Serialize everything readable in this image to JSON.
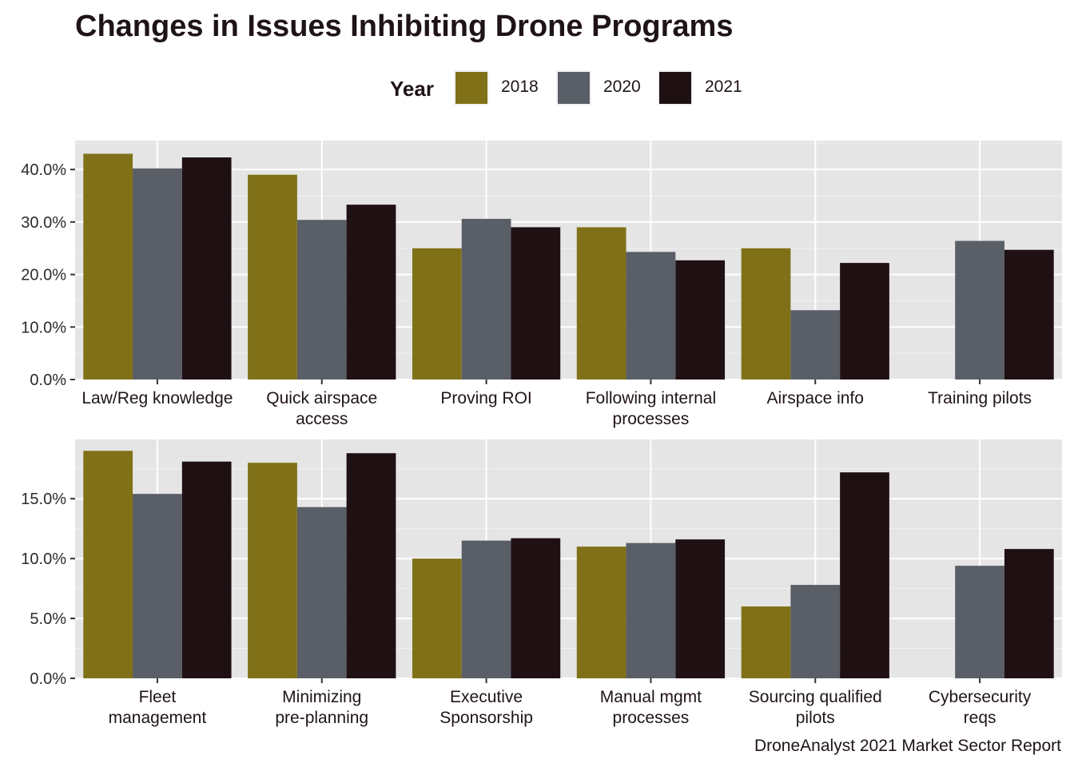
{
  "title": "Changes in Issues Inhibiting Drone Programs",
  "caption": "DroneAnalyst 2021 Market Sector Report",
  "legend": {
    "title": "Year",
    "items": [
      {
        "label": "2018",
        "color": "#807119"
      },
      {
        "label": "2020",
        "color": "#5a5e66"
      },
      {
        "label": "2021",
        "color": "#1f1013"
      }
    ]
  },
  "chart_data": [
    {
      "type": "bar",
      "grouped": true,
      "categories": [
        [
          "Law/Reg knowledge"
        ],
        [
          "Quick airspace",
          "access"
        ],
        [
          "Proving ROI"
        ],
        [
          "Following internal",
          "processes"
        ],
        [
          "Airspace info"
        ],
        [
          "Training pilots"
        ]
      ],
      "series": [
        {
          "name": "2018",
          "values": [
            43.0,
            39.0,
            25.0,
            29.0,
            25.0,
            null
          ]
        },
        {
          "name": "2020",
          "values": [
            40.2,
            30.4,
            30.6,
            24.3,
            13.2,
            26.4
          ]
        },
        {
          "name": "2021",
          "values": [
            42.3,
            33.3,
            29.0,
            22.7,
            22.2,
            24.7
          ]
        }
      ],
      "ylim": [
        0,
        45.5
      ],
      "yticks": [
        0,
        10,
        20,
        30,
        40
      ],
      "ytick_labels": [
        "0.0%",
        "10.0%",
        "20.0%",
        "30.0%",
        "40.0%"
      ],
      "xlabel": "",
      "ylabel": "",
      "grid": true
    },
    {
      "type": "bar",
      "grouped": true,
      "categories": [
        [
          "Fleet",
          "management"
        ],
        [
          "Minimizing",
          "pre-planning"
        ],
        [
          "Executive",
          "Sponsorship"
        ],
        [
          "Manual mgmt",
          "processes"
        ],
        [
          "Sourcing qualified",
          "pilots"
        ],
        [
          "Cybersecurity",
          "reqs"
        ]
      ],
      "series": [
        {
          "name": "2018",
          "values": [
            19.0,
            18.0,
            10.0,
            11.0,
            6.0,
            null
          ]
        },
        {
          "name": "2020",
          "values": [
            15.4,
            14.3,
            11.5,
            11.3,
            7.8,
            9.4
          ]
        },
        {
          "name": "2021",
          "values": [
            18.1,
            18.8,
            11.7,
            11.6,
            17.2,
            10.8
          ]
        }
      ],
      "ylim": [
        0,
        19.95
      ],
      "yticks": [
        0,
        5,
        10,
        15
      ],
      "ytick_labels": [
        "0.0%",
        "5.0%",
        "10.0%",
        "15.0%"
      ],
      "xlabel": "",
      "ylabel": "",
      "grid": true
    }
  ]
}
